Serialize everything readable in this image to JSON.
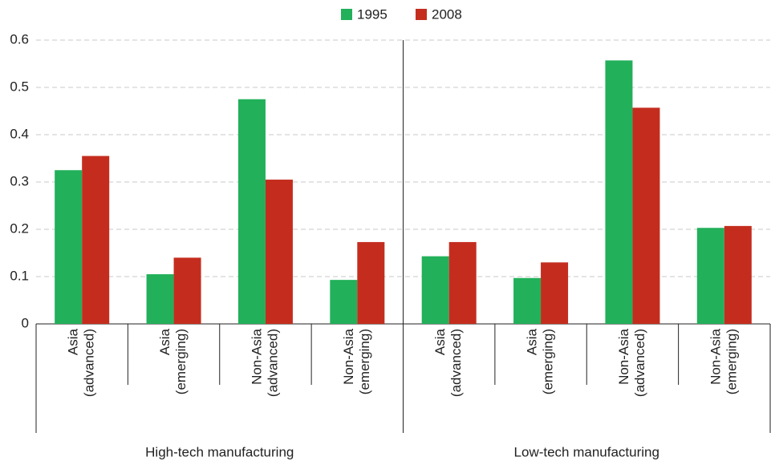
{
  "chart_data": {
    "type": "bar",
    "groups": [
      {
        "name": "High-tech manufacturing",
        "categories": [
          [
            "Asia",
            "(advanced)"
          ],
          [
            "Asia",
            "(emerging)"
          ],
          [
            "Non-Asia",
            "(advanced)"
          ],
          [
            "Non-Asia",
            "(emerging)"
          ]
        ]
      },
      {
        "name": "Low-tech manufacturing",
        "categories": [
          [
            "Asia",
            "(advanced)"
          ],
          [
            "Asia",
            "(emerging)"
          ],
          [
            "Non-Asia",
            "(advanced)"
          ],
          [
            "Non-Asia",
            "(emerging)"
          ]
        ]
      }
    ],
    "series": [
      {
        "name": "1995",
        "color": "#22b05a",
        "values": [
          0.325,
          0.105,
          0.475,
          0.093,
          0.143,
          0.097,
          0.557,
          0.203
        ]
      },
      {
        "name": "2008",
        "color": "#c42d1e",
        "values": [
          0.355,
          0.14,
          0.305,
          0.173,
          0.173,
          0.13,
          0.457,
          0.207
        ]
      }
    ],
    "ylim": [
      0,
      0.6
    ],
    "yticks": [
      0,
      0.1,
      0.2,
      0.3,
      0.4,
      0.5,
      0.6
    ],
    "grid": true,
    "legend": "top"
  }
}
